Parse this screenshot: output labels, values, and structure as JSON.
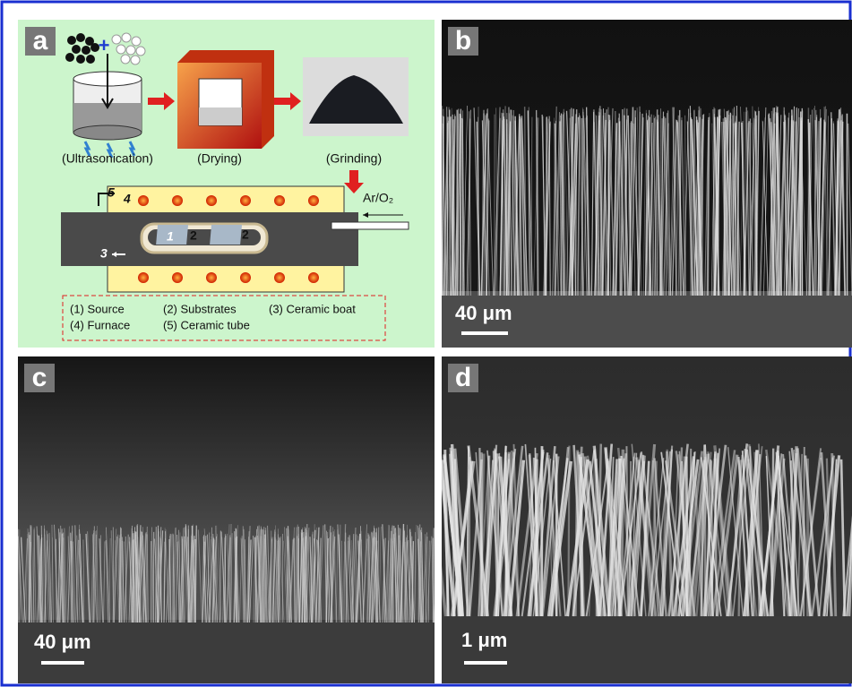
{
  "panels": {
    "a": {
      "label": "a",
      "steps": [
        "(Ultrasonication)",
        "(Drying)",
        "(Grinding)"
      ],
      "gas": "Ar/O₂",
      "markers": [
        "5",
        "4",
        "3",
        "1",
        "2",
        "2"
      ],
      "legend": [
        "(1) Source",
        "(2) Substrates",
        "(3) Ceramic boat",
        "(4) Furnace",
        "(5) Ceramic tube"
      ]
    },
    "b": {
      "label": "b",
      "scale": "40 μm"
    },
    "c": {
      "label": "c",
      "scale": "40 μm"
    },
    "d": {
      "label": "d",
      "scale": "1 μm"
    }
  }
}
